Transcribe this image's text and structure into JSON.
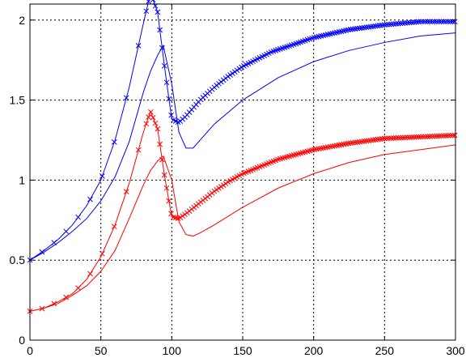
{
  "chart_data": {
    "type": "line",
    "title": "",
    "xlabel": "",
    "ylabel": "",
    "xlim": [
      0,
      300
    ],
    "ylim": [
      0,
      2.1
    ],
    "grid": true,
    "x_ticks": [
      "0",
      "50",
      "100",
      "150",
      "200",
      "250",
      "300"
    ],
    "y_ticks": [
      "0",
      "0.5",
      "1",
      "1.5",
      "2"
    ],
    "series": [
      {
        "color": "#0000ff",
        "marker": "x",
        "x": [
          0,
          10,
          20,
          30,
          40,
          50,
          60,
          70,
          80,
          85,
          90,
          95,
          100,
          105,
          110,
          120,
          130,
          140,
          150,
          170,
          200,
          225,
          250,
          275,
          300
        ],
        "y": [
          0.5,
          0.56,
          0.63,
          0.72,
          0.84,
          1.0,
          1.25,
          1.58,
          1.98,
          2.17,
          2.05,
          1.7,
          1.38,
          1.36,
          1.4,
          1.5,
          1.58,
          1.65,
          1.71,
          1.8,
          1.89,
          1.94,
          1.97,
          1.99,
          1.99
        ]
      },
      {
        "color": "#0000ff",
        "marker": "none",
        "x": [
          0,
          10,
          20,
          30,
          40,
          50,
          60,
          70,
          80,
          85,
          90,
          94,
          100,
          105,
          110,
          115,
          120,
          130,
          150,
          175,
          200,
          225,
          250,
          275,
          300
        ],
        "y": [
          0.5,
          0.55,
          0.61,
          0.68,
          0.76,
          0.87,
          1.02,
          1.24,
          1.55,
          1.68,
          1.78,
          1.84,
          1.6,
          1.3,
          1.2,
          1.2,
          1.25,
          1.35,
          1.5,
          1.64,
          1.74,
          1.81,
          1.86,
          1.9,
          1.92
        ]
      },
      {
        "color": "#ff0000",
        "marker": "x",
        "x": [
          0,
          10,
          20,
          30,
          40,
          50,
          60,
          70,
          80,
          85,
          90,
          95,
          100,
          105,
          110,
          120,
          130,
          140,
          150,
          175,
          200,
          225,
          250,
          275,
          300
        ],
        "y": [
          0.18,
          0.2,
          0.24,
          0.29,
          0.38,
          0.52,
          0.72,
          0.98,
          1.3,
          1.43,
          1.32,
          1.02,
          0.77,
          0.76,
          0.79,
          0.86,
          0.93,
          0.99,
          1.04,
          1.13,
          1.19,
          1.23,
          1.26,
          1.27,
          1.28
        ]
      },
      {
        "color": "#ff0000",
        "marker": "none",
        "x": [
          0,
          10,
          20,
          30,
          40,
          50,
          60,
          70,
          80,
          85,
          90,
          94,
          100,
          105,
          110,
          115,
          120,
          130,
          150,
          175,
          200,
          225,
          250,
          275,
          300
        ],
        "y": [
          0.18,
          0.2,
          0.23,
          0.28,
          0.34,
          0.43,
          0.56,
          0.76,
          0.97,
          1.06,
          1.12,
          1.15,
          1.0,
          0.74,
          0.66,
          0.65,
          0.67,
          0.72,
          0.83,
          0.95,
          1.04,
          1.11,
          1.16,
          1.19,
          1.22
        ]
      }
    ]
  }
}
